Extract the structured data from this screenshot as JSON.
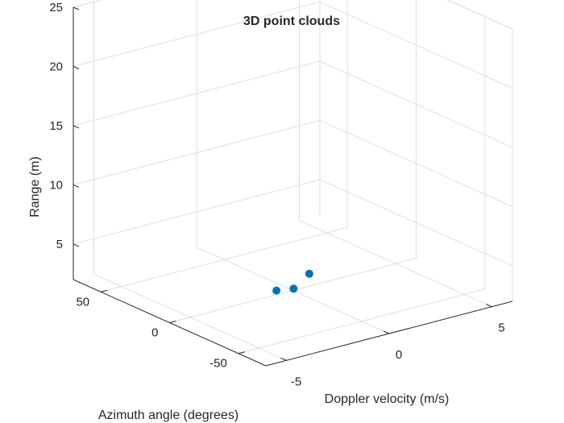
{
  "chart_data": {
    "type": "scatter",
    "title": "3D point clouds",
    "xlabel": "Doppler velocity (m/s)",
    "ylabel": "Azimuth angle (degrees)",
    "zlabel": "Range (m)",
    "xticks": [
      "-5",
      "0",
      "5"
    ],
    "yticks": [
      "-50",
      "0",
      "50"
    ],
    "zticks": [
      "5",
      "10",
      "15",
      "20",
      "25"
    ],
    "xlim": [
      -6,
      6
    ],
    "ylim": [
      -70,
      70
    ],
    "zlim": [
      2,
      25
    ],
    "grid": true,
    "point_color": "#0072BD",
    "points": [
      {
        "x": -1.0,
        "y": -3,
        "z": 2.6
      },
      {
        "x": -0.1,
        "y": -2,
        "z": 2.3
      },
      {
        "x": 1.0,
        "y": 3,
        "z": 2.8
      }
    ]
  }
}
